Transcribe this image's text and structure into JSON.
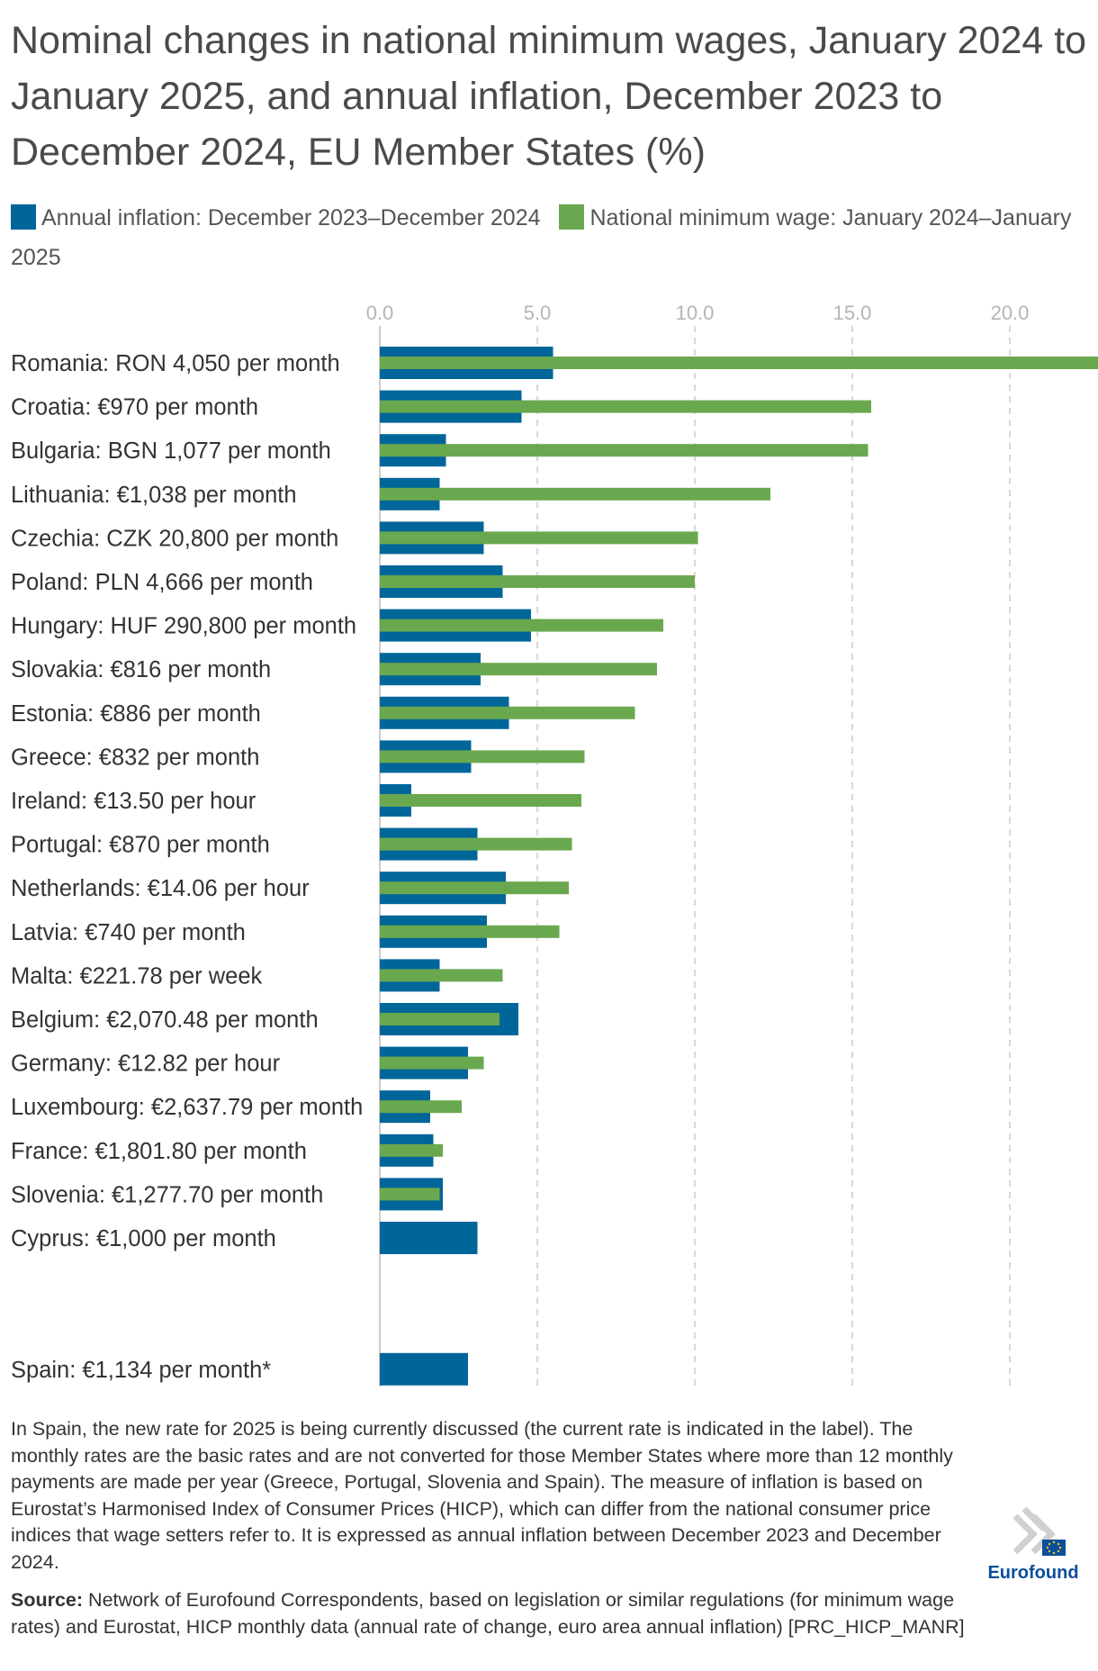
{
  "title": "Nominal changes in national minimum wages, January 2024 to January 2025, and annual inflation, December 2023 to December 2024, EU Member States (%)",
  "colors": {
    "inflation": "#006699",
    "wage": "#6aa84f",
    "grid": "#cccccc",
    "tick": "#b5b5b5",
    "logo_blue": "#0b4f9c"
  },
  "legend": [
    {
      "label": "Annual inflation: December 2023–December 2024",
      "color": "#006699"
    },
    {
      "label": "National minimum wage: January 2024–January 2025",
      "color": "#6aa84f"
    }
  ],
  "chart_data": {
    "type": "bar",
    "orientation": "horizontal",
    "xlim": [
      0,
      22.8
    ],
    "xticks": [
      "0.0",
      "5.0",
      "10.0",
      "15.0",
      "20.0"
    ],
    "grid": true,
    "legend_position": "top",
    "categories": [
      "Romania: RON 4,050 per month",
      "Croatia: €970 per month",
      "Bulgaria: BGN 1,077 per month",
      "Lithuania: €1,038 per month",
      "Czechia: CZK 20,800 per month",
      "Poland: PLN 4,666 per month",
      "Hungary: HUF 290,800 per month",
      "Slovakia: €816 per month",
      "Estonia: €886 per month",
      "Greece: €832 per month",
      "Ireland: €13.50 per hour",
      "Portugal: €870 per month",
      "Netherlands: €14.06 per hour",
      "Latvia: €740 per month",
      "Malta: €221.78 per week",
      "Belgium: €2,070.48 per month",
      "Germany: €12.82 per hour",
      "Luxembourg: €2,637.79 per month",
      "France: €1,801.80 per month",
      "Slovenia: €1,277.70 per month",
      "Cyprus: €1,000 per month",
      "",
      "",
      "Spain: €1,134 per month*"
    ],
    "series": [
      {
        "name": "Annual inflation: December 2023–December 2024",
        "values": [
          5.5,
          4.5,
          2.1,
          1.9,
          3.3,
          3.9,
          4.8,
          3.2,
          4.1,
          2.9,
          1.0,
          3.1,
          4.0,
          3.4,
          1.9,
          4.4,
          2.8,
          1.6,
          1.7,
          2.0,
          3.1,
          null,
          null,
          2.8
        ]
      },
      {
        "name": "National minimum wage: January 2024–January 2025",
        "values": [
          22.8,
          15.6,
          15.5,
          12.4,
          10.1,
          10.0,
          9.0,
          8.8,
          8.1,
          6.5,
          6.4,
          6.1,
          6.0,
          5.7,
          3.9,
          3.8,
          3.3,
          2.6,
          2.0,
          1.9,
          null,
          null,
          null,
          null
        ]
      }
    ]
  },
  "note": "In Spain, the new rate for 2025 is being currently discussed (the current rate is indicated in the label). The monthly rates are the basic rates and are not converted for those Member States where more than 12 monthly payments are made per year (Greece, Portugal, Slovenia and Spain). The measure of inflation is based on Eurostat’s Harmonised Index of Consumer Prices (HICP), which can differ from the national consumer price indices that wage setters refer to. It is expressed as annual inflation between December 2023 and December 2024.",
  "source": {
    "label": "Source:",
    "text": " Network of Eurofound Correspondents, based on legislation or similar regulations (for minimum wage rates) and Eurostat, HICP monthly data (annual rate of change, euro area annual inflation) [PRC_HICP_MANR]"
  },
  "logo": {
    "text": "Eurofound"
  }
}
